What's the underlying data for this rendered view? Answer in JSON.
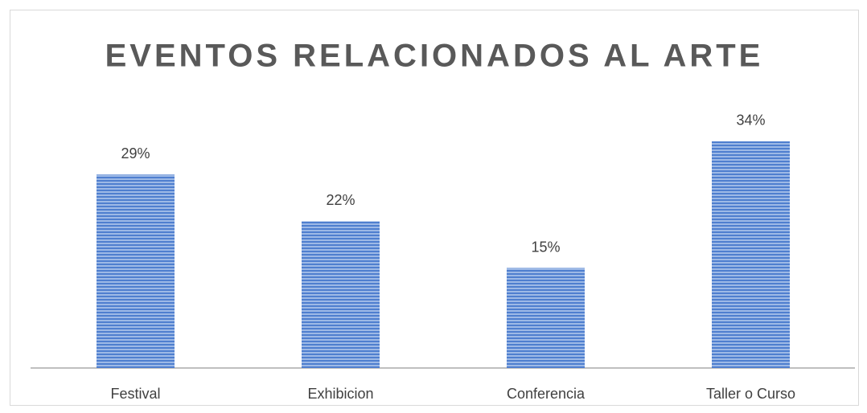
{
  "chart_data": {
    "type": "bar",
    "title": "EVENTOS RELACIONADOS AL ARTE",
    "categories": [
      "Festival",
      "Exhibicion",
      "Conferencia",
      "Taller o Curso"
    ],
    "values": [
      29,
      22,
      15,
      34
    ],
    "value_labels": [
      "29%",
      "22%",
      "15%",
      "34%"
    ],
    "color": "#4f7fcf"
  }
}
